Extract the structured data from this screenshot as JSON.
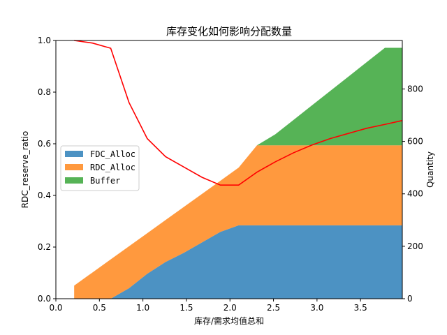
{
  "chart_data": {
    "type": "area",
    "title": "库存变化如何影响分配数量",
    "xlabel": "库存/需求均值总和",
    "ylabel_left": "RDC_reserve_ratio",
    "ylabel_right": "Quantity",
    "xlim": [
      0.0,
      3.98
    ],
    "ylim_left": [
      0.0,
      1.0
    ],
    "ylim_right": [
      0,
      985
    ],
    "x_ticks": [
      "0.0",
      "0.5",
      "1.0",
      "1.5",
      "2.0",
      "2.5",
      "3.0",
      "3.5"
    ],
    "x_tick_values": [
      0.0,
      0.5,
      1.0,
      1.5,
      2.0,
      2.5,
      3.0,
      3.5
    ],
    "y_left_ticks": [
      "0.0",
      "0.2",
      "0.4",
      "0.6",
      "0.8",
      "1.0"
    ],
    "y_left_tick_values": [
      0.0,
      0.2,
      0.4,
      0.6,
      0.8,
      1.0
    ],
    "y_right_ticks": [
      "0",
      "200",
      "400",
      "600",
      "800"
    ],
    "y_right_tick_values": [
      0,
      200,
      400,
      600,
      800
    ],
    "x": [
      0.21,
      0.42,
      0.63,
      0.84,
      1.05,
      1.26,
      1.47,
      1.68,
      1.89,
      2.1,
      2.31,
      2.52,
      2.73,
      2.94,
      3.15,
      3.36,
      3.57,
      3.78,
      3.98
    ],
    "series": [
      {
        "name": "FDC_Alloc",
        "color": "#1f77b4",
        "values": [
          0,
          0,
          0,
          40,
          95,
          140,
          175,
          215,
          255,
          280,
          280,
          280,
          280,
          280,
          280,
          280,
          280,
          280,
          280
        ]
      },
      {
        "name": "RDC_Alloc",
        "color": "#ff7f0e",
        "values": [
          50,
          100,
          150,
          160,
          155,
          160,
          175,
          185,
          195,
          220,
          305,
          305,
          305,
          305,
          305,
          305,
          305,
          305,
          305
        ]
      },
      {
        "name": "Buffer",
        "color": "#2ca02c",
        "values": [
          0,
          0,
          0,
          0,
          0,
          0,
          0,
          0,
          0,
          0,
          0,
          42,
          97,
          152,
          207,
          262,
          317,
          372,
          372
        ]
      }
    ],
    "line": {
      "name": "RDC_reserve_ratio",
      "color": "#ff0000",
      "axis": "left",
      "x": [
        0.21,
        0.42,
        0.63,
        0.84,
        1.05,
        1.26,
        1.47,
        1.68,
        1.89,
        2.1,
        2.31,
        2.52,
        2.73,
        2.94,
        3.15,
        3.36,
        3.57,
        3.78,
        3.98
      ],
      "values": [
        1.0,
        0.99,
        0.97,
        0.76,
        0.62,
        0.55,
        0.51,
        0.47,
        0.44,
        0.44,
        0.49,
        0.53,
        0.565,
        0.595,
        0.62,
        0.64,
        0.66,
        0.675,
        0.69
      ]
    },
    "legend": {
      "position": "center-left",
      "entries": [
        "FDC_Alloc",
        "RDC_Alloc",
        "Buffer"
      ]
    },
    "grid": false
  }
}
